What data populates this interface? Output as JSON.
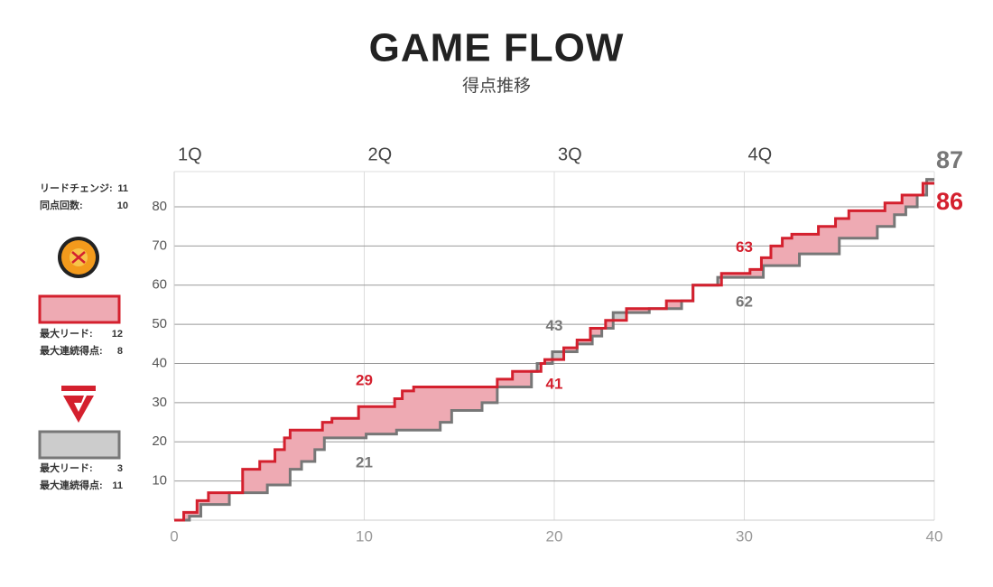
{
  "chart_data": {
    "type": "step",
    "title": "GAME FLOW",
    "subtitle": "得点推移",
    "xlim": [
      0,
      40
    ],
    "ylim": [
      0,
      89
    ],
    "xticks": [
      0,
      10,
      20,
      30,
      40
    ],
    "quarter_ticks": [
      {
        "value": 0,
        "label": "1Q"
      },
      {
        "value": 10,
        "label": "2Q"
      },
      {
        "value": 20,
        "label": "3Q"
      },
      {
        "value": 30,
        "label": "4Q"
      }
    ],
    "yticks": [
      10,
      20,
      30,
      40,
      50,
      60,
      70,
      80
    ],
    "grid": true,
    "summary": [
      {
        "label": "リードチェンジ:",
        "value": 11
      },
      {
        "label": "同点回数:",
        "value": 10
      }
    ],
    "series": [
      {
        "color": "#d4202e",
        "fill": "#eeaab3",
        "x": [
          0,
          0.5,
          1.2,
          1.8,
          3.6,
          4.5,
          5.3,
          5.8,
          6.1,
          7.8,
          8.3,
          9.7,
          11.6,
          12.0,
          12.6,
          17.0,
          17.8,
          19.3,
          19.5,
          20.5,
          21.2,
          21.9,
          22.7,
          23.8,
          25.9,
          27.3,
          28.8,
          30.3,
          30.9,
          31.4,
          32.0,
          32.5,
          33.9,
          34.8,
          35.5,
          37.4,
          38.3,
          39.4
        ],
        "values": [
          0,
          2,
          5,
          7,
          13,
          15,
          18,
          21,
          23,
          25,
          26,
          29,
          31,
          33,
          34,
          36,
          38,
          40,
          41,
          44,
          46,
          49,
          51,
          54,
          56,
          60,
          63,
          64,
          67,
          70,
          72,
          73,
          75,
          77,
          79,
          81,
          83,
          86
        ],
        "stats": [
          {
            "label": "最大リード:",
            "value": 12
          },
          {
            "label": "最大連続得点:",
            "value": 8
          }
        ]
      },
      {
        "color": "#777777",
        "fill": "#cccccc",
        "x": [
          0,
          0.8,
          1.4,
          2.9,
          4.9,
          6.1,
          6.7,
          7.4,
          7.9,
          10.1,
          11.7,
          14.0,
          14.6,
          16.2,
          17.0,
          18.8,
          19.1,
          19.9,
          21.2,
          22.0,
          22.5,
          23.1,
          25.0,
          26.7,
          27.3,
          28.6,
          31.0,
          32.9,
          35.0,
          37.0,
          37.9,
          38.5,
          39.1,
          39.6
        ],
        "values": [
          0,
          1,
          4,
          7,
          9,
          13,
          15,
          18,
          21,
          22,
          23,
          25,
          28,
          30,
          34,
          38,
          40,
          43,
          45,
          47,
          49,
          53,
          54,
          56,
          60,
          62,
          65,
          68,
          72,
          75,
          78,
          80,
          83,
          87
        ],
        "stats": [
          {
            "label": "最大リード:",
            "value": 3
          },
          {
            "label": "最大連続得点:",
            "value": 11
          }
        ]
      }
    ],
    "annotations": [
      {
        "text": "29",
        "x": 10,
        "series": 0,
        "position": "above"
      },
      {
        "text": "21",
        "x": 10,
        "series": 1,
        "position": "below"
      },
      {
        "text": "43",
        "x": 20,
        "series": 1,
        "position": "above"
      },
      {
        "text": "41",
        "x": 20,
        "series": 0,
        "position": "below"
      },
      {
        "text": "63",
        "x": 30,
        "series": 0,
        "position": "above"
      },
      {
        "text": "62",
        "x": 30,
        "series": 1,
        "position": "below"
      }
    ]
  }
}
